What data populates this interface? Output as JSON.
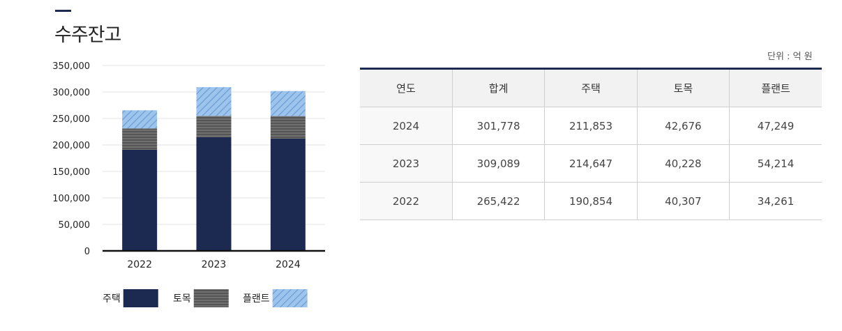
{
  "page": {
    "title": "수주잔고"
  },
  "table": {
    "unit": "단위 : 억 원",
    "headers": [
      "연도",
      "합계",
      "주택",
      "토목",
      "플랜트"
    ],
    "rows": [
      [
        "2024",
        "301,778",
        "211,853",
        "42,676",
        "47,249"
      ],
      [
        "2023",
        "309,089",
        "214,647",
        "40,228",
        "54,214"
      ],
      [
        "2022",
        "265,422",
        "190,854",
        "40,307",
        "34,261"
      ]
    ]
  },
  "colors": {
    "housing": "#1c2a52",
    "civil": "#555555",
    "plant": "#9cc4ec",
    "plant_hatch": "#6f9fd4",
    "header_rule": "#1c2a52"
  },
  "chart_data": {
    "type": "bar",
    "stacked": true,
    "categories": [
      "2022",
      "2023",
      "2024"
    ],
    "series": [
      {
        "name": "주택",
        "values": [
          190854,
          214647,
          211853
        ],
        "color": "#1c2a52"
      },
      {
        "name": "토목",
        "values": [
          40307,
          40228,
          42676
        ],
        "color": "#555555"
      },
      {
        "name": "플랜트",
        "values": [
          34261,
          54214,
          47249
        ],
        "color": "#9cc4ec"
      }
    ],
    "yticks": [
      0,
      50000,
      100000,
      150000,
      200000,
      250000,
      300000,
      350000
    ],
    "ytick_labels": [
      "0",
      "50,000",
      "100,000",
      "150,000",
      "200,000",
      "250,000",
      "300,000",
      "350,000"
    ],
    "ylim": [
      0,
      350000
    ],
    "grid": true,
    "legend_position": "bottom"
  }
}
